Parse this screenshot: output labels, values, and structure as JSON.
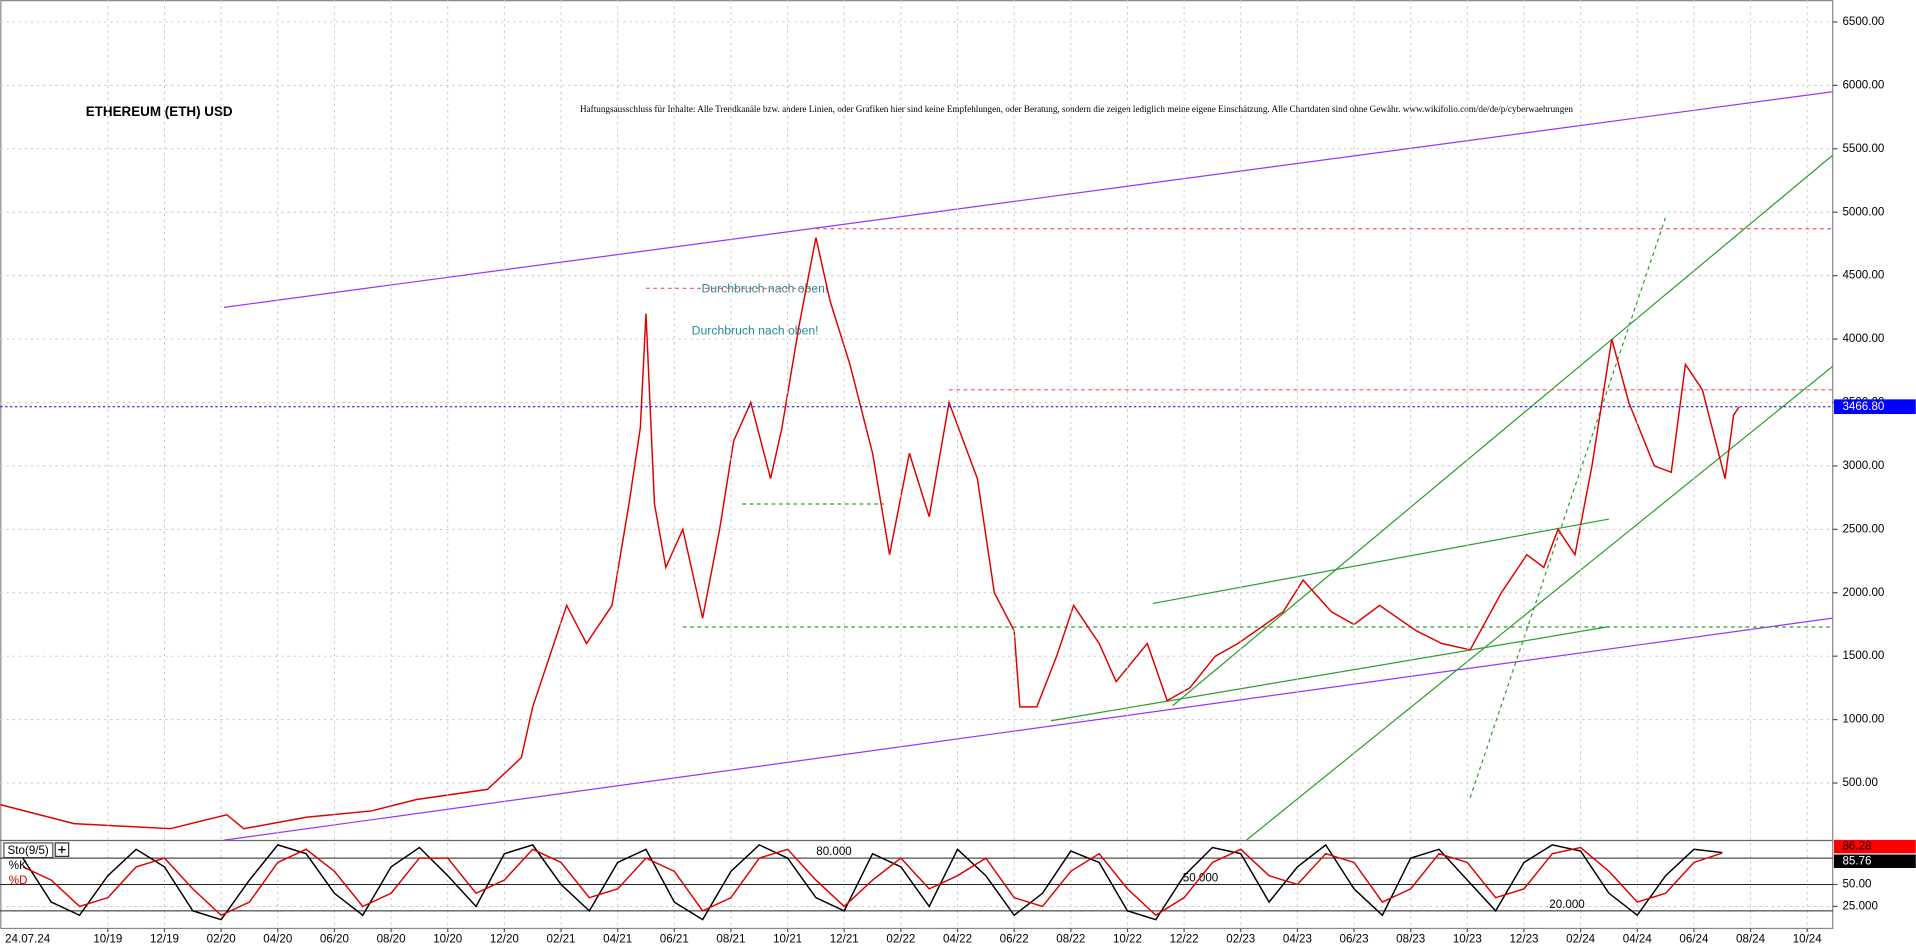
{
  "chart_data": [
    {
      "type": "line",
      "title": "ETHEREUM (ETH) USD",
      "subtitle": "Haftungsausschluss für Inhalte: Alle Trendkanäle bzw. andere Linien, oder Grafiken hier sind keine Empfehlungen, oder Beratung, sondern die zeigen lediglich meine eigene Einschätzung. Alle Chartdaten sind ohne Gewähr.  www.wikifolio.com/de/de/p/cyberwaehrungen",
      "annotations": [
        "Durchbruch nach oben!",
        "Durchbruch nach oben!"
      ],
      "xlim": [
        5.2,
        69.9
      ],
      "ylim": [
        47,
        6673
      ],
      "yticks": [
        {
          "value": 500,
          "label": "500.00"
        },
        {
          "value": 1000,
          "label": "1000.00"
        },
        {
          "value": 1500,
          "label": "1500.00"
        },
        {
          "value": 2000,
          "label": "2000.00"
        },
        {
          "value": 2500,
          "label": "2500.00"
        },
        {
          "value": 3000,
          "label": "3000.00"
        },
        {
          "value": 3500,
          "label": "3500.00"
        },
        {
          "value": 4000,
          "label": "4000.00"
        },
        {
          "value": 4500,
          "label": "4500.00"
        },
        {
          "value": 5000,
          "label": "5000.00"
        },
        {
          "value": 5500,
          "label": "5500.00"
        },
        {
          "value": 6000,
          "label": "6000.00"
        },
        {
          "value": 6500,
          "label": "6500.00"
        }
      ],
      "grid": true,
      "series": [
        {
          "name": "ETH",
          "color": "#e00000",
          "x": [
            5.2,
            7.8,
            11.2,
            13.2,
            13.8,
            16.0,
            18.3,
            19.9,
            22.4,
            23.6,
            24.0,
            25.2,
            25.9,
            26.8,
            27.4,
            27.8,
            28.0,
            28.3,
            28.7,
            29.3,
            30.0,
            30.6,
            31.1,
            31.7,
            32.4,
            32.8,
            33.4,
            34.0,
            34.5,
            35.2,
            36.0,
            36.6,
            37.3,
            38.0,
            38.7,
            39.7,
            40.3,
            41.0,
            41.2,
            41.8,
            42.5,
            43.1,
            44.0,
            44.6,
            45.7,
            46.4,
            47.2,
            48.1,
            48.9,
            50.5,
            51.2,
            52.2,
            53.0,
            53.9,
            55.2,
            56.1,
            57.1,
            58.2,
            59.1,
            59.7,
            60.2,
            60.8,
            61.4,
            62.1,
            62.7,
            63.6,
            64.2,
            64.7,
            65.3,
            66.1,
            66.4,
            66.6
          ],
          "values": [
            330,
            180,
            140,
            250,
            140,
            230,
            280,
            370,
            450,
            700,
            1100,
            1900,
            1600,
            1900,
            2700,
            3300,
            4200,
            2700,
            2200,
            2500,
            1800,
            2500,
            3200,
            3500,
            2900,
            3300,
            4100,
            4800,
            4300,
            3800,
            3100,
            2300,
            3100,
            2600,
            3500,
            2900,
            2000,
            1700,
            1100,
            1100,
            1500,
            1900,
            1600,
            1300,
            1600,
            1150,
            1250,
            1500,
            1600,
            1850,
            2100,
            1850,
            1750,
            1900,
            1700,
            1600,
            1550,
            2000,
            2300,
            2200,
            2500,
            2300,
            3000,
            4000,
            3500,
            3000,
            2950,
            3800,
            3600,
            2900,
            3400,
            3466.8
          ]
        }
      ],
      "current": {
        "value": 3466.8,
        "label": "3466.80",
        "color": "#0000ff"
      },
      "trendlines": [
        {
          "color": "#9933ff",
          "dashed": false,
          "x": [
            13.1,
            69.9
          ],
          "y": [
            4250,
            5950
          ]
        },
        {
          "color": "#9933ff",
          "dashed": false,
          "x": [
            13.1,
            69.9
          ],
          "y": [
            50,
            1800
          ]
        },
        {
          "color": "#2e9e2e",
          "dashed": false,
          "x": [
            46.6,
            69.9
          ],
          "y": [
            1110,
            5450
          ]
        },
        {
          "color": "#2e9e2e",
          "dashed": false,
          "x": [
            49.2,
            69.9
          ],
          "y": [
            50,
            3785
          ]
        },
        {
          "color": "#2e9e2e",
          "dashed": false,
          "x": [
            45.9,
            62.0
          ],
          "y": [
            1916,
            2581
          ]
        },
        {
          "color": "#2e9e2e",
          "dashed": false,
          "x": [
            42.3,
            62.0
          ],
          "y": [
            991,
            1733
          ]
        },
        {
          "color": "#2e9e2e",
          "dashed": true,
          "x": [
            57.1,
            64.0
          ],
          "y": [
            384,
            4960
          ]
        },
        {
          "color": "#2e9e2e",
          "dashed": true,
          "x": [
            29.3,
            69.9
          ],
          "y": [
            1730,
            1730
          ]
        },
        {
          "color": "#2e9e2e",
          "dashed": true,
          "x": [
            31.4,
            36.4
          ],
          "y": [
            2700,
            2700
          ]
        },
        {
          "color": "#ff5050",
          "dashed": true,
          "x": [
            34.0,
            69.9
          ],
          "y": [
            4870,
            4870
          ]
        },
        {
          "color": "#ff5050",
          "dashed": true,
          "x": [
            38.7,
            69.9
          ],
          "y": [
            3600,
            3600
          ]
        },
        {
          "color": "#ff5050",
          "dashed": true,
          "x": [
            28.0,
            34.0
          ],
          "y": [
            4400,
            4400
          ]
        }
      ]
    },
    {
      "type": "line",
      "title": "Sto(9/5)",
      "cursor_date": "24.07.24",
      "xlim": [
        5.2,
        69.9
      ],
      "ylim": [
        0,
        100
      ],
      "xticks": [
        {
          "value": 9,
          "label": "10/19"
        },
        {
          "value": 11,
          "label": "12/19"
        },
        {
          "value": 13,
          "label": "02/20"
        },
        {
          "value": 15,
          "label": "04/20"
        },
        {
          "value": 17,
          "label": "06/20"
        },
        {
          "value": 19,
          "label": "08/20"
        },
        {
          "value": 21,
          "label": "10/20"
        },
        {
          "value": 23,
          "label": "12/20"
        },
        {
          "value": 25,
          "label": "02/21"
        },
        {
          "value": 27,
          "label": "04/21"
        },
        {
          "value": 29,
          "label": "06/21"
        },
        {
          "value": 31,
          "label": "08/21"
        },
        {
          "value": 33,
          "label": "10/21"
        },
        {
          "value": 35,
          "label": "12/21"
        },
        {
          "value": 37,
          "label": "02/22"
        },
        {
          "value": 39,
          "label": "04/22"
        },
        {
          "value": 41,
          "label": "06/22"
        },
        {
          "value": 43,
          "label": "08/22"
        },
        {
          "value": 45,
          "label": "10/22"
        },
        {
          "value": 47,
          "label": "12/22"
        },
        {
          "value": 49,
          "label": "02/23"
        },
        {
          "value": 51,
          "label": "04/23"
        },
        {
          "value": 53,
          "label": "06/23"
        },
        {
          "value": 55,
          "label": "08/23"
        },
        {
          "value": 57,
          "label": "10/23"
        },
        {
          "value": 59,
          "label": "12/23"
        },
        {
          "value": 61,
          "label": "02/24"
        },
        {
          "value": 63,
          "label": "04/24"
        },
        {
          "value": 65,
          "label": "06/24"
        },
        {
          "value": 67,
          "label": "08/24"
        },
        {
          "value": 69,
          "label": "10/24"
        }
      ],
      "yticks": [
        {
          "value": 50,
          "label": "50.00"
        },
        {
          "value": 25,
          "label": "25.000"
        }
      ],
      "levels": [
        {
          "value": 80,
          "label": "80.000"
        },
        {
          "value": 50,
          "label": "50.000"
        },
        {
          "value": 20,
          "label": "20.000"
        }
      ],
      "grid": true,
      "series": [
        {
          "name": "%K",
          "color": "#000000",
          "box_color": "#ff0000",
          "x": [
            6,
            7,
            8,
            9,
            10,
            11,
            12,
            13,
            14,
            15,
            16,
            17,
            18,
            19,
            20,
            21,
            22,
            23,
            24,
            25,
            26,
            27,
            28,
            29,
            30,
            31,
            32,
            33,
            34,
            35,
            36,
            37,
            38,
            39,
            40,
            41,
            42,
            43,
            44,
            45,
            46,
            47,
            48,
            49,
            50,
            51,
            52,
            53,
            54,
            55,
            56,
            57,
            58,
            59,
            60,
            61,
            62,
            63,
            64,
            65,
            66
          ],
          "values": [
            80,
            30,
            15,
            60,
            90,
            70,
            20,
            10,
            55,
            95,
            85,
            40,
            15,
            70,
            92,
            60,
            25,
            85,
            95,
            50,
            20,
            75,
            90,
            30,
            10,
            65,
            95,
            80,
            35,
            20,
            85,
            70,
            25,
            90,
            60,
            15,
            40,
            88,
            75,
            20,
            10,
            60,
            92,
            85,
            30,
            70,
            95,
            45,
            15,
            80,
            90,
            55,
            20,
            75,
            95,
            88,
            40,
            15,
            60,
            90,
            86.28
          ]
        },
        {
          "name": "%D",
          "color": "#e00000",
          "box_color": "#000000",
          "x": [
            6,
            7,
            8,
            9,
            10,
            11,
            12,
            13,
            14,
            15,
            16,
            17,
            18,
            19,
            20,
            21,
            22,
            23,
            24,
            25,
            26,
            27,
            28,
            29,
            30,
            31,
            32,
            33,
            34,
            35,
            36,
            37,
            38,
            39,
            40,
            41,
            42,
            43,
            44,
            45,
            46,
            47,
            48,
            49,
            50,
            51,
            52,
            53,
            54,
            55,
            56,
            57,
            58,
            59,
            60,
            61,
            62,
            63,
            64,
            65,
            66
          ],
          "values": [
            70,
            55,
            25,
            35,
            70,
            80,
            45,
            15,
            30,
            75,
            90,
            65,
            25,
            40,
            80,
            80,
            40,
            55,
            90,
            75,
            35,
            45,
            80,
            65,
            20,
            35,
            80,
            90,
            55,
            25,
            55,
            80,
            45,
            60,
            80,
            35,
            25,
            65,
            85,
            45,
            15,
            35,
            75,
            90,
            60,
            50,
            85,
            75,
            30,
            45,
            85,
            75,
            35,
            45,
            85,
            92,
            65,
            30,
            40,
            75,
            85.76
          ]
        }
      ]
    }
  ]
}
